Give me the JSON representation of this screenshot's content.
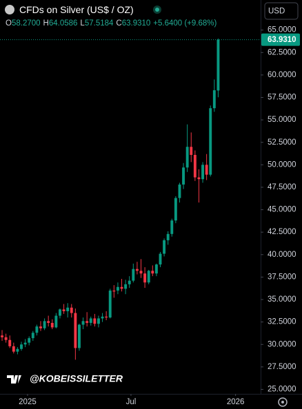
{
  "chart_data": {
    "type": "candlestick",
    "title": "CFDs on Silver (US$ / OZ)",
    "legend_fields": [
      "O",
      "H",
      "L",
      "C"
    ],
    "legend_values": [
      "58.2700",
      "64.0586",
      "57.5184",
      "63.9310"
    ],
    "change": "+5.6400 (+9.68%)",
    "currency": "USD",
    "watermark": "@KOBEISSILETTER",
    "up_color": "#089981",
    "down_color": "#f23645",
    "x": [
      0,
      1,
      2,
      3,
      4,
      5,
      6,
      7,
      8,
      9,
      10,
      11,
      12,
      13,
      14,
      15,
      16,
      17,
      18,
      19,
      20,
      21,
      22,
      23,
      24,
      25,
      26,
      27,
      28,
      29,
      30,
      31,
      32,
      33,
      34,
      35,
      36,
      37,
      38,
      39,
      40,
      41,
      42,
      43,
      44,
      45,
      46,
      47,
      48,
      49,
      50,
      51,
      52,
      53,
      54,
      55,
      56
    ],
    "open": [
      31.0,
      30.8,
      30.5,
      29.8,
      29.2,
      29.5,
      30.0,
      30.2,
      30.7,
      31.3,
      32.0,
      31.8,
      32.6,
      32.4,
      31.9,
      33.2,
      33.9,
      33.7,
      34.1,
      33.5,
      29.6,
      32.2,
      32.6,
      32.4,
      32.9,
      32.3,
      32.9,
      33.1,
      33.0,
      36.0,
      36.0,
      36.4,
      36.2,
      36.7,
      37.1,
      38.4,
      38.2,
      37.9,
      36.9,
      38.2,
      37.9,
      38.9,
      40.1,
      41.6,
      42.3,
      43.8,
      46.3,
      47.8,
      49.7,
      52.0,
      51.1,
      48.6,
      48.4,
      50.0,
      48.9,
      56.3,
      58.27
    ],
    "high": [
      31.6,
      31.2,
      31.0,
      30.2,
      29.7,
      30.3,
      30.6,
      30.9,
      31.5,
      32.2,
      32.6,
      32.9,
      33.2,
      32.8,
      33.5,
      34.0,
      34.5,
      34.6,
      34.5,
      34.0,
      32.3,
      33.0,
      33.6,
      33.1,
      33.4,
      33.2,
      33.5,
      33.7,
      36.2,
      36.6,
      36.9,
      37.3,
      37.2,
      37.6,
      39.0,
      39.2,
      39.5,
      38.6,
      38.3,
      38.8,
      39.0,
      40.3,
      41.8,
      42.6,
      44.0,
      46.5,
      48.0,
      50.2,
      54.5,
      53.6,
      51.6,
      49.5,
      50.3,
      51.2,
      56.6,
      59.5,
      64.0586
    ],
    "low": [
      30.4,
      30.2,
      29.6,
      29.0,
      28.9,
      29.3,
      29.7,
      29.9,
      30.4,
      31.0,
      31.5,
      31.6,
      32.0,
      31.7,
      31.8,
      32.9,
      33.4,
      33.0,
      33.0,
      28.3,
      29.3,
      31.7,
      32.0,
      32.1,
      32.0,
      31.9,
      32.5,
      32.7,
      32.9,
      35.2,
      35.6,
      35.9,
      35.6,
      36.3,
      36.9,
      37.8,
      37.4,
      36.3,
      36.7,
      37.6,
      37.6,
      38.6,
      39.8,
      41.1,
      42.0,
      43.5,
      45.8,
      47.3,
      49.2,
      50.3,
      48.2,
      45.8,
      48.0,
      48.3,
      48.7,
      55.9,
      57.5184
    ],
    "close": [
      30.8,
      30.5,
      29.8,
      29.2,
      29.5,
      30.0,
      30.2,
      30.7,
      31.3,
      32.0,
      31.8,
      32.6,
      32.4,
      31.9,
      33.2,
      33.9,
      33.7,
      34.1,
      33.5,
      29.6,
      32.2,
      32.6,
      32.4,
      32.9,
      32.3,
      32.9,
      33.1,
      33.0,
      36.0,
      35.9,
      36.4,
      36.2,
      36.7,
      37.1,
      38.4,
      38.2,
      37.9,
      36.9,
      38.2,
      37.9,
      38.9,
      40.1,
      41.6,
      42.3,
      43.8,
      46.3,
      47.8,
      49.7,
      52.0,
      51.1,
      48.6,
      48.4,
      50.0,
      48.9,
      56.3,
      58.3,
      63.931
    ],
    "xlim": [
      -0.54,
      67
    ],
    "xticks": [
      {
        "value": 6.6,
        "label": "2025"
      },
      {
        "value": 33.4,
        "label": "Jul"
      },
      {
        "value": 60.5,
        "label": "2026"
      }
    ],
    "ylim": [
      24.5,
      66.2
    ],
    "yticks": [
      {
        "value": 25,
        "label": "25.0000"
      },
      {
        "value": 27.5,
        "label": "27.5000"
      },
      {
        "value": 30,
        "label": "30.0000"
      },
      {
        "value": 32.5,
        "label": "32.5000"
      },
      {
        "value": 35,
        "label": "35.0000"
      },
      {
        "value": 37.5,
        "label": "37.5000"
      },
      {
        "value": 40,
        "label": "40.0000"
      },
      {
        "value": 42.5,
        "label": "42.5000"
      },
      {
        "value": 45,
        "label": "45.0000"
      },
      {
        "value": 47.5,
        "label": "47.5000"
      },
      {
        "value": 50,
        "label": "50.0000"
      },
      {
        "value": 52.5,
        "label": "52.5000"
      },
      {
        "value": 55,
        "label": "55.0000"
      },
      {
        "value": 57.5,
        "label": "57.5000"
      },
      {
        "value": 60,
        "label": "60.0000"
      },
      {
        "value": 62.5,
        "label": "62.5000"
      },
      {
        "value": 65,
        "label": "65.0000"
      }
    ],
    "last_price": {
      "value": 63.931,
      "label": "63.9310"
    }
  }
}
